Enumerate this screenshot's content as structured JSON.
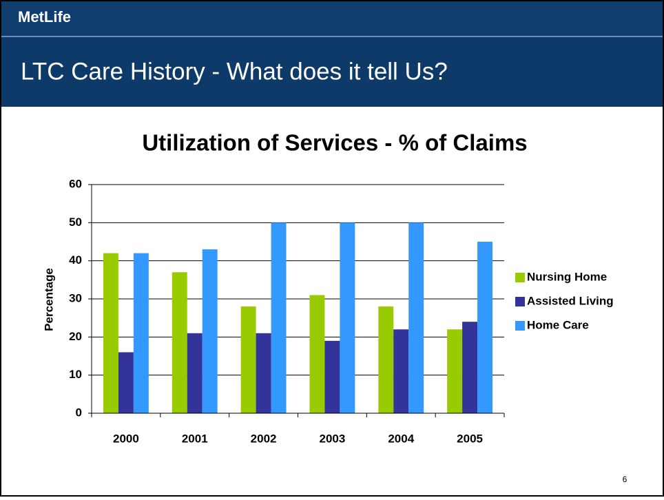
{
  "header": {
    "brand": "MetLife",
    "title": "LTC Care History - What does it tell Us?"
  },
  "page_number": "6",
  "chart_data": {
    "type": "bar",
    "title": "Utilization of Services - % of Claims",
    "y_label": "Percentage",
    "categories": [
      "2000",
      "2001",
      "2002",
      "2003",
      "2004",
      "2005"
    ],
    "series": [
      {
        "name": "Nursing Home",
        "color": "#99cc00",
        "values": [
          42,
          37,
          28,
          31,
          28,
          22
        ]
      },
      {
        "name": "Assisted Living",
        "color": "#333399",
        "values": [
          16,
          21,
          21,
          19,
          22,
          24
        ]
      },
      {
        "name": "Home Care",
        "color": "#3399ff",
        "values": [
          42,
          43,
          50,
          50,
          50,
          45
        ]
      }
    ],
    "ylim": [
      0,
      60
    ],
    "yticks": [
      0,
      10,
      20,
      30,
      40,
      50,
      60
    ],
    "grid": true,
    "legend": "right"
  }
}
